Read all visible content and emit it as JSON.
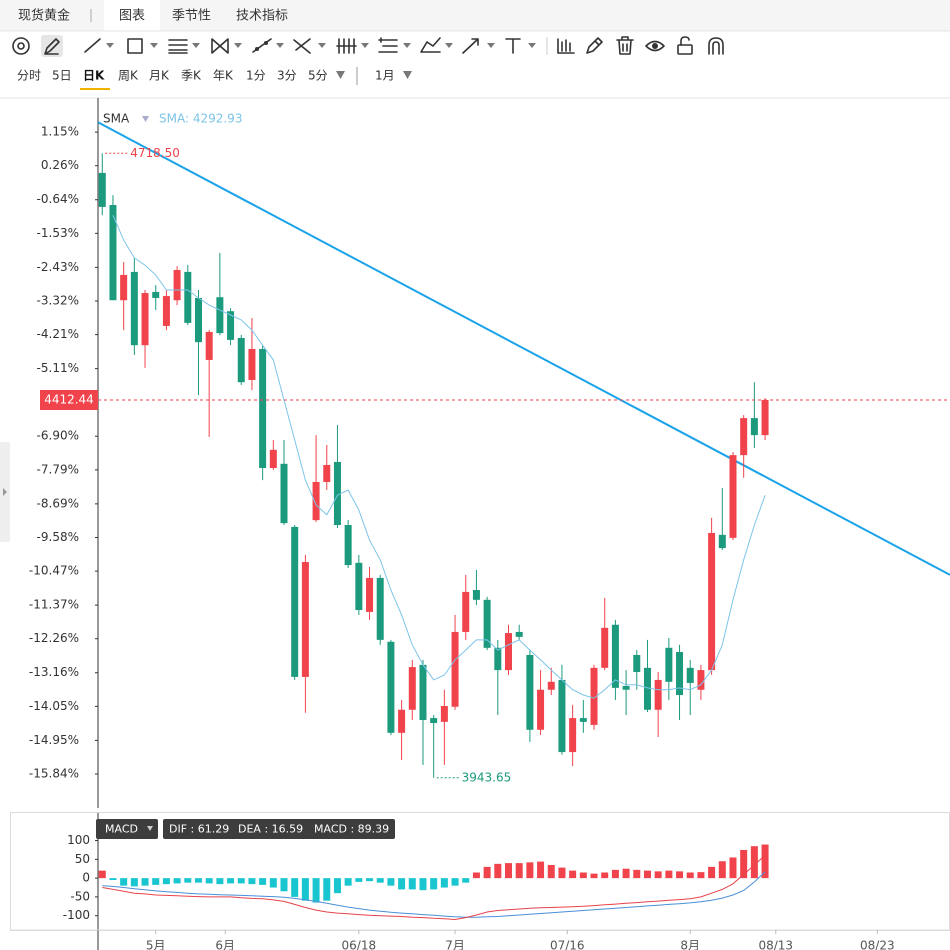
{
  "tabs": [
    "现货黄金",
    "图表",
    "季节性",
    "技术指标"
  ],
  "period_tabs": [
    "分时",
    "5日",
    "日K",
    "周K",
    "月K",
    "季K",
    "年K",
    "1分",
    "3分",
    "5分",
    "1月"
  ],
  "chart_data": [
    {
      "type": "candlestick",
      "up_color": "#f0434b",
      "down_color": "#1b9a7d",
      "xlim": [
        -0.4,
        79.3
      ],
      "xticks": [
        {
          "value": 5,
          "label": "5月"
        },
        {
          "value": 11.5,
          "label": "6月"
        },
        {
          "value": 24,
          "label": "06/18"
        },
        {
          "value": 33,
          "label": "7月"
        },
        {
          "value": 43.5,
          "label": "07/16"
        },
        {
          "value": 55,
          "label": "8月"
        },
        {
          "value": 63,
          "label": "08/13"
        },
        {
          "value": 72.5,
          "label": "08/23"
        }
      ],
      "ylim": [
        -16.74,
        2.0
      ],
      "yticks": [
        {
          "value": 1.15,
          "label": "1.15%"
        },
        {
          "value": 0.26,
          "label": "0.26%"
        },
        {
          "value": -0.64,
          "label": "-0.64%"
        },
        {
          "value": -1.53,
          "label": "-1.53%"
        },
        {
          "value": -2.43,
          "label": "-2.43%"
        },
        {
          "value": -3.32,
          "label": "-3.32%"
        },
        {
          "value": -4.21,
          "label": "-4.21%"
        },
        {
          "value": -5.11,
          "label": "-5.11%"
        },
        {
          "value": -6.9,
          "label": "-6.90%"
        },
        {
          "value": -7.79,
          "label": "-7.79%"
        },
        {
          "value": -8.69,
          "label": "-8.69%"
        },
        {
          "value": -9.58,
          "label": "-9.58%"
        },
        {
          "value": -10.47,
          "label": "-10.47%"
        },
        {
          "value": -11.37,
          "label": "-11.37%"
        },
        {
          "value": -12.26,
          "label": "-12.26%"
        },
        {
          "value": -13.16,
          "label": "-13.16%"
        },
        {
          "value": -14.05,
          "label": "-14.05%"
        },
        {
          "value": -14.95,
          "label": "-14.95%"
        },
        {
          "value": -15.84,
          "label": "-15.84%"
        }
      ],
      "open": [
        0.07,
        -0.78,
        -3.3,
        -2.55,
        -4.49,
        -3.08,
        -3.98,
        -3.3,
        -2.55,
        -3.24,
        -4.88,
        -3.22,
        -3.59,
        -4.3,
        -5.41,
        -4.59,
        -7.74,
        -7.63,
        -9.3,
        -13.27,
        -9.12,
        -8.11,
        -7.58,
        -9.25,
        -10.25,
        -11.55,
        -10.65,
        -12.34,
        -14.75,
        -14.14,
        -12.95,
        -14.36,
        -14.46,
        -14.06,
        -12.08,
        -10.97,
        -11.23,
        -12.5,
        -13.09,
        -12.08,
        -12.69,
        -14.67,
        -13.61,
        -13.35,
        -15.26,
        -14.36,
        -14.54,
        -13.03,
        -11.89,
        -13.51,
        -12.69,
        -13.03,
        -14.14,
        -12.5,
        -12.61,
        -13.03,
        -13.61,
        -13.09,
        -9.51,
        -9.59,
        -7.4,
        -6.42,
        -6.87
      ],
      "high": [
        0.59,
        -0.52,
        -2.29,
        -2.18,
        -3.03,
        -2.9,
        -3.03,
        -2.4,
        -2.37,
        -3.03,
        -4.09,
        -2.05,
        -3.51,
        -4.22,
        -3.77,
        -4.49,
        -7.0,
        -7.0,
        -9.25,
        -10.04,
        -6.87,
        -7.13,
        -6.6,
        -9.12,
        -10.04,
        -10.36,
        -10.57,
        -12.29,
        -13.88,
        -12.82,
        -12.82,
        -14.28,
        -13.61,
        -11.63,
        -10.57,
        -10.44,
        -11.15,
        -12.29,
        -11.89,
        -11.89,
        -12.56,
        -13.09,
        -13.03,
        -12.95,
        -14.01,
        -13.88,
        -12.95,
        -11.18,
        -11.76,
        -13.09,
        -12.56,
        -12.29,
        -13.14,
        -12.24,
        -12.42,
        -12.82,
        -12.95,
        -9.06,
        -8.27,
        -7.32,
        -6.34,
        -5.47,
        -5.89
      ],
      "low": [
        -1.05,
        -3.3,
        -4.09,
        -4.75,
        -5.09,
        -3.56,
        -4.09,
        -3.43,
        -3.96,
        -5.81,
        -6.92,
        -4.22,
        -4.49,
        -5.54,
        -5.68,
        -8.06,
        -7.79,
        -9.25,
        -13.35,
        -14.22,
        -9.17,
        -8.32,
        -9.33,
        -10.39,
        -11.63,
        -11.76,
        -12.42,
        -14.81,
        -15.47,
        -14.41,
        -15.6,
        -15.94,
        -15.6,
        -14.14,
        -12.29,
        -11.37,
        -12.56,
        -14.28,
        -13.22,
        -12.29,
        -14.99,
        -14.81,
        -13.75,
        -15.33,
        -15.63,
        -14.75,
        -14.67,
        -13.09,
        -13.88,
        -14.28,
        -13.61,
        -14.2,
        -14.86,
        -13.88,
        -14.41,
        -14.28,
        -13.88,
        -13.22,
        -9.91,
        -9.65,
        -8.0,
        -7.21,
        -7.0
      ],
      "close": [
        -0.83,
        -3.3,
        -2.63,
        -4.49,
        -3.11,
        -3.24,
        -3.19,
        -2.5,
        -3.9,
        -4.41,
        -4.14,
        -4.17,
        -4.35,
        -5.47,
        -4.59,
        -7.74,
        -7.26,
        -9.2,
        -13.27,
        -10.23,
        -8.11,
        -7.66,
        -9.25,
        -10.31,
        -11.5,
        -10.65,
        -12.29,
        -14.75,
        -14.14,
        -13.01,
        -14.41,
        -14.49,
        -14.04,
        -12.08,
        -11.02,
        -11.23,
        -12.5,
        -13.09,
        -12.11,
        -12.21,
        -14.67,
        -13.61,
        -13.4,
        -15.26,
        -14.36,
        -14.46,
        -13.03,
        -11.97,
        -13.56,
        -13.61,
        -13.14,
        -14.14,
        -13.35,
        -13.4,
        -13.75,
        -13.43,
        -13.09,
        -9.46,
        -9.86,
        -7.4,
        -6.42,
        -6.87,
        -5.94
      ],
      "sma": {
        "name": "SMA",
        "label": "SMA: 4292.93",
        "color": "#7cc4ea",
        "values": [
          null,
          -1.05,
          -1.71,
          -2.18,
          -2.37,
          -2.63,
          -3.03,
          -3.03,
          -3.03,
          -3.24,
          -3.43,
          -3.56,
          -3.69,
          -3.82,
          -4.09,
          -4.49,
          -4.88,
          -5.94,
          -7.0,
          -8.06,
          -8.72,
          -8.98,
          -8.46,
          -8.32,
          -8.85,
          -9.65,
          -10.17,
          -10.97,
          -11.63,
          -12.42,
          -12.95,
          -13.35,
          -13.22,
          -12.82,
          -12.56,
          -12.29,
          -12.29,
          -12.56,
          -12.42,
          -12.29,
          -12.56,
          -12.82,
          -13.09,
          -13.35,
          -13.61,
          -13.75,
          -13.83,
          -13.61,
          -13.35,
          -13.48,
          -13.48,
          -13.56,
          -13.61,
          -13.61,
          -13.56,
          -13.61,
          -13.48,
          -13.09,
          -12.42,
          -11.23,
          -10.17,
          -9.25,
          -8.46
        ]
      },
      "trend_line": {
        "color": "#1aa3e8",
        "x": [
          -0.4,
          79.3
        ],
        "values": [
          1.41,
          -10.57
        ]
      },
      "max_label": "4718.50",
      "min_label": "3943.65",
      "last_label": "4412.44"
    },
    {
      "type": "macd",
      "title": "MACD",
      "header": [
        "DIF : 61.29",
        "DEA : 16.59",
        "MACD : 89.39"
      ],
      "ylim": [
        -138,
        168
      ],
      "yticks": [
        100,
        50,
        0,
        -50,
        -100
      ],
      "histogram": {
        "up_color": "#f0434b",
        "down_color": "#19c6cf",
        "values": [
          20,
          -5,
          -20,
          -22,
          -20,
          -18,
          -16,
          -14,
          -12,
          -12,
          -14,
          -16,
          -14,
          -14,
          -16,
          -18,
          -25,
          -35,
          -50,
          -60,
          -65,
          -60,
          -40,
          -20,
          -10,
          -8,
          -12,
          -20,
          -30,
          -30,
          -32,
          -30,
          -25,
          -20,
          -12,
          15,
          30,
          38,
          40,
          40,
          42,
          44,
          35,
          28,
          20,
          15,
          12,
          15,
          22,
          25,
          22,
          20,
          18,
          20,
          18,
          15,
          16,
          30,
          45,
          55,
          75,
          85,
          89.39
        ]
      },
      "dif": {
        "color": "#e8434b",
        "values": [
          -25,
          -30,
          -35,
          -40,
          -42,
          -45,
          -46,
          -47,
          -48,
          -49,
          -50,
          -50,
          -50,
          -52,
          -54,
          -55,
          -58,
          -62,
          -70,
          -78,
          -85,
          -90,
          -93,
          -95,
          -97,
          -99,
          -100,
          -101,
          -102,
          -104,
          -105,
          -107,
          -108,
          -110,
          -105,
          -98,
          -90,
          -86,
          -84,
          -82,
          -80,
          -79,
          -78,
          -77,
          -76,
          -75,
          -73,
          -71,
          -69,
          -67,
          -65,
          -63,
          -61,
          -59,
          -57,
          -55,
          -50,
          -40,
          -30,
          -15,
          10,
          35,
          61.29
        ]
      },
      "dea": {
        "color": "#4a8fd8",
        "values": [
          -20,
          -22,
          -25,
          -28,
          -31,
          -34,
          -36,
          -38,
          -40,
          -42,
          -43,
          -44,
          -45,
          -46,
          -47,
          -48,
          -49,
          -51,
          -54,
          -58,
          -62,
          -67,
          -72,
          -77,
          -81,
          -85,
          -88,
          -91,
          -93,
          -95,
          -97,
          -99,
          -101,
          -103,
          -104,
          -104,
          -103,
          -102,
          -100,
          -98,
          -96,
          -94,
          -92,
          -90,
          -88,
          -86,
          -84,
          -82,
          -80,
          -78,
          -76,
          -74,
          -72,
          -70,
          -68,
          -66,
          -63,
          -59,
          -53,
          -45,
          -33,
          -10,
          16.59
        ]
      }
    }
  ]
}
